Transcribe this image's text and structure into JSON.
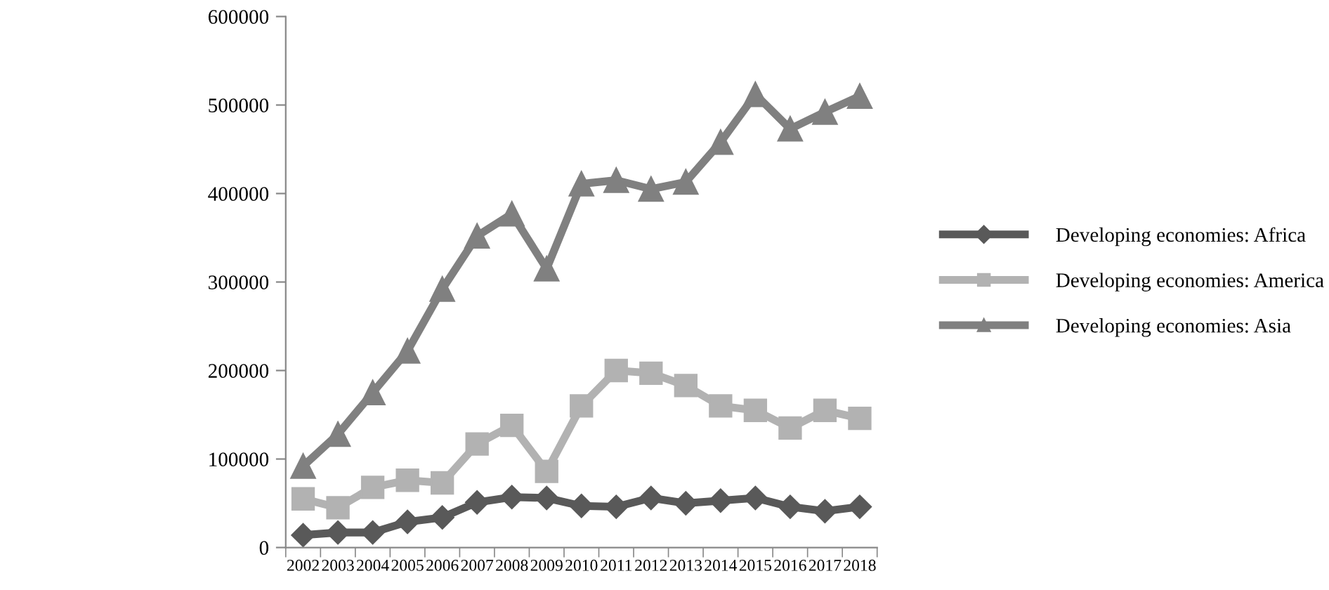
{
  "chart_data": {
    "type": "line",
    "categories": [
      "2002",
      "2003",
      "2004",
      "2005",
      "2006",
      "2007",
      "2008",
      "2009",
      "2010",
      "2011",
      "2012",
      "2013",
      "2014",
      "2015",
      "2016",
      "2017",
      "2018"
    ],
    "series": [
      {
        "name": "Developing economies: Africa",
        "color": "#595959",
        "marker": "diamond",
        "values": [
          14000,
          17000,
          17000,
          29000,
          34000,
          51000,
          57000,
          56000,
          47000,
          46000,
          56000,
          50000,
          53000,
          56000,
          46000,
          41000,
          46000
        ]
      },
      {
        "name": "Developing economies: America",
        "color": "#b2b2b2",
        "marker": "square",
        "values": [
          55000,
          45000,
          68000,
          76000,
          73000,
          117000,
          138000,
          86000,
          160000,
          200000,
          197000,
          183000,
          160000,
          155000,
          135000,
          155000,
          146000
        ]
      },
      {
        "name": "Developing economies: Asia",
        "color": "#808080",
        "marker": "triangle",
        "values": [
          92000,
          128000,
          175000,
          222000,
          292000,
          352000,
          377000,
          315000,
          411000,
          415000,
          405000,
          413000,
          458000,
          512000,
          473000,
          492000,
          510000
        ]
      }
    ],
    "ylim": [
      0,
      600000
    ],
    "yticks": [
      0,
      100000,
      200000,
      300000,
      400000,
      500000,
      600000
    ],
    "grid": false,
    "legend": "right",
    "line_style": "solid"
  }
}
